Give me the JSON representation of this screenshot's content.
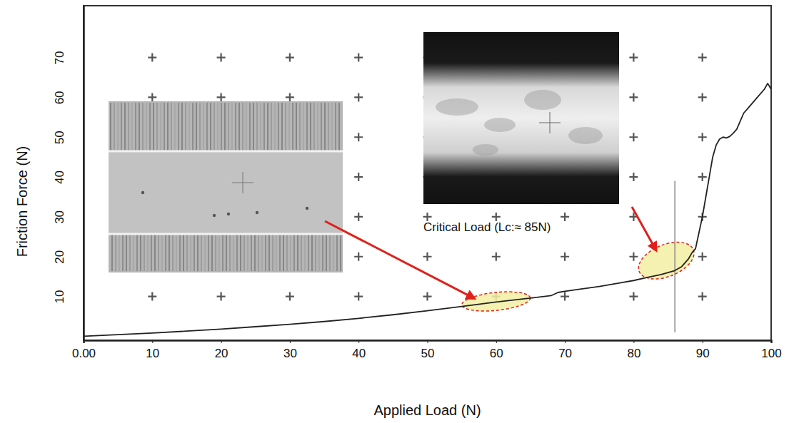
{
  "chart_data": {
    "type": "line",
    "x_label": "Applied Load (N)",
    "y_label": "Friction Force (N)",
    "x": [
      0,
      5,
      10,
      15,
      20,
      25,
      30,
      35,
      40,
      45,
      50,
      55,
      60,
      65,
      68,
      69,
      70,
      72,
      75,
      78,
      80,
      82,
      84,
      85,
      86,
      87,
      88,
      88.5,
      89,
      89.5,
      90,
      90.5,
      91,
      91.5,
      92,
      92.5,
      93,
      93.5,
      94,
      94.5,
      95,
      96,
      97,
      98,
      99,
      99.5,
      100
    ],
    "values": [
      0,
      0.4,
      0.8,
      1.3,
      1.8,
      2.4,
      3,
      3.7,
      4.5,
      5.4,
      6.4,
      7.5,
      8.6,
      9.6,
      10.2,
      11,
      11.3,
      11.8,
      12.5,
      13.4,
      14,
      14.8,
      15.5,
      16,
      16.5,
      17.5,
      19.5,
      21,
      22,
      26,
      30,
      35,
      40,
      45,
      48,
      49.5,
      50,
      49.8,
      50.2,
      51,
      52,
      56,
      58,
      60,
      62,
      63.5,
      62
    ],
    "color": "#222222",
    "xlim": [
      0,
      100
    ],
    "ylim": [
      -1,
      83
    ],
    "xticks": [
      {
        "value": 0,
        "label": "0.00"
      },
      10,
      20,
      30,
      40,
      50,
      60,
      70,
      80,
      90,
      100
    ],
    "yticks": [
      10,
      20,
      30,
      40,
      50,
      60,
      70
    ],
    "grid": true,
    "annotations": [
      {
        "text": "Critical Load (Lc:≈ 85N)"
      }
    ],
    "highlights": [
      {
        "x": [
          55,
          65
        ],
        "y": [
          6.5,
          11
        ]
      },
      {
        "x": [
          80.5,
          89
        ],
        "y": [
          15,
          23
        ]
      }
    ],
    "reference_line": {
      "x": 86,
      "y": [
        1,
        39
      ]
    }
  }
}
